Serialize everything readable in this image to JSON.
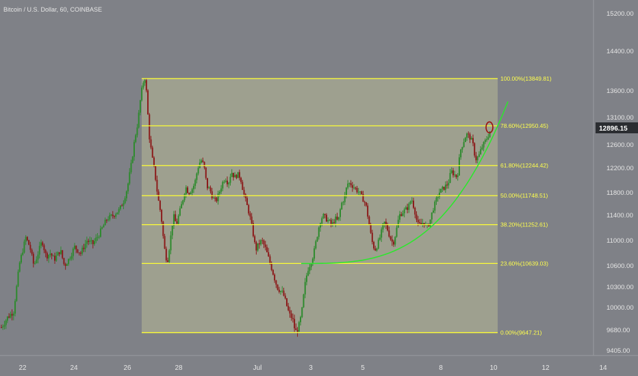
{
  "title": "Bitcoin / U.S. Dollar, 60, COINBASE",
  "colors": {
    "background": "#7f8187",
    "up": "#2d8a2d",
    "down": "#8b1a1a",
    "fib_line": "#ffff33",
    "fib_fill": "#a6a891",
    "arc": "#2ee62e",
    "marker": "#9b1010"
  },
  "chart_data": {
    "type": "candlestick",
    "title": "Bitcoin / U.S. Dollar, 60, COINBASE",
    "y_axis_ticks": [
      9405,
      9680,
      10000,
      10300,
      10600,
      11000,
      11400,
      11800,
      12200,
      12600,
      13100,
      13600,
      14400,
      15200
    ],
    "y_axis_labels": [
      "9405.00",
      "9680.00",
      "10000.00",
      "10300.00",
      "10600.00",
      "11000.00",
      "11400.00",
      "11800.00",
      "12200.00",
      "12600.00",
      "13100.00",
      "13600.00",
      "14400.00",
      "15200.00"
    ],
    "x_axis_labels": [
      "22",
      "24",
      "26",
      "28",
      "Jul",
      "3",
      "5",
      "8",
      "10",
      "12",
      "14"
    ],
    "last_price": "12896.15",
    "price_path": [
      [
        0,
        9720
      ],
      [
        6,
        9860
      ],
      [
        12,
        9950
      ],
      [
        18,
        10650
      ],
      [
        24,
        11050
      ],
      [
        28,
        10900
      ],
      [
        32,
        10600
      ],
      [
        36,
        10800
      ],
      [
        40,
        11000
      ],
      [
        44,
        10750
      ],
      [
        48,
        10800
      ],
      [
        52,
        10700
      ],
      [
        58,
        10850
      ],
      [
        62,
        10600
      ],
      [
        66,
        10700
      ],
      [
        72,
        10900
      ],
      [
        78,
        10800
      ],
      [
        84,
        11000
      ],
      [
        90,
        10950
      ],
      [
        96,
        11100
      ],
      [
        104,
        11350
      ],
      [
        110,
        11400
      ],
      [
        116,
        11500
      ],
      [
        120,
        11650
      ],
      [
        124,
        11900
      ],
      [
        128,
        12300
      ],
      [
        131,
        12700
      ],
      [
        134,
        13000
      ],
      [
        137,
        13500
      ],
      [
        139,
        13750
      ],
      [
        141,
        13850
      ],
      [
        143,
        13500
      ],
      [
        145,
        12800
      ],
      [
        148,
        12400
      ],
      [
        151,
        12100
      ],
      [
        154,
        11700
      ],
      [
        157,
        11400
      ],
      [
        160,
        10900
      ],
      [
        163,
        10650
      ],
      [
        166,
        11000
      ],
      [
        169,
        11400
      ],
      [
        172,
        11250
      ],
      [
        175,
        11450
      ],
      [
        178,
        11650
      ],
      [
        181,
        11900
      ],
      [
        184,
        11800
      ],
      [
        187,
        11850
      ],
      [
        190,
        11950
      ],
      [
        193,
        12200
      ],
      [
        196,
        12350
      ],
      [
        199,
        12250
      ],
      [
        202,
        11900
      ],
      [
        205,
        11850
      ],
      [
        208,
        11700
      ],
      [
        211,
        11650
      ],
      [
        214,
        11800
      ],
      [
        217,
        11950
      ],
      [
        220,
        12050
      ],
      [
        223,
        11950
      ],
      [
        226,
        12150
      ],
      [
        229,
        12050
      ],
      [
        232,
        12100
      ],
      [
        235,
        12050
      ],
      [
        238,
        11800
      ],
      [
        241,
        11600
      ],
      [
        244,
        11400
      ],
      [
        247,
        11150
      ],
      [
        250,
        10850
      ],
      [
        253,
        10950
      ],
      [
        256,
        11000
      ],
      [
        259,
        10900
      ],
      [
        262,
        10750
      ],
      [
        265,
        10600
      ],
      [
        268,
        10450
      ],
      [
        271,
        10300
      ],
      [
        274,
        10250
      ],
      [
        277,
        10200
      ],
      [
        280,
        10050
      ],
      [
        283,
        9900
      ],
      [
        286,
        9850
      ],
      [
        289,
        9650
      ],
      [
        292,
        9720
      ],
      [
        295,
        9900
      ],
      [
        298,
        10300
      ],
      [
        301,
        10550
      ],
      [
        304,
        10650
      ],
      [
        307,
        10800
      ],
      [
        310,
        11050
      ],
      [
        313,
        11300
      ],
      [
        316,
        11400
      ],
      [
        319,
        11350
      ],
      [
        322,
        11300
      ],
      [
        325,
        11250
      ],
      [
        328,
        11350
      ],
      [
        331,
        11300
      ],
      [
        334,
        11600
      ],
      [
        337,
        11700
      ],
      [
        340,
        11950
      ],
      [
        343,
        11950
      ],
      [
        346,
        11900
      ],
      [
        349,
        11850
      ],
      [
        352,
        11800
      ],
      [
        355,
        11700
      ],
      [
        358,
        11600
      ],
      [
        361,
        11300
      ],
      [
        364,
        11000
      ],
      [
        367,
        10850
      ],
      [
        370,
        10950
      ],
      [
        373,
        11100
      ],
      [
        376,
        11300
      ],
      [
        379,
        11200
      ],
      [
        382,
        11050
      ],
      [
        385,
        10950
      ],
      [
        388,
        11150
      ],
      [
        391,
        11400
      ],
      [
        394,
        11450
      ],
      [
        397,
        11500
      ],
      [
        400,
        11550
      ],
      [
        403,
        11700
      ],
      [
        406,
        11500
      ],
      [
        409,
        11250
      ],
      [
        412,
        11250
      ],
      [
        415,
        11300
      ],
      [
        418,
        11200
      ],
      [
        421,
        11300
      ],
      [
        424,
        11500
      ],
      [
        427,
        11650
      ],
      [
        430,
        11800
      ],
      [
        433,
        11850
      ],
      [
        436,
        11900
      ],
      [
        439,
        11950
      ],
      [
        442,
        12150
      ],
      [
        445,
        12100
      ],
      [
        448,
        12050
      ],
      [
        451,
        12500
      ],
      [
        454,
        12650
      ],
      [
        457,
        12800
      ],
      [
        460,
        12750
      ],
      [
        463,
        12650
      ],
      [
        466,
        12350
      ],
      [
        469,
        12400
      ],
      [
        472,
        12550
      ],
      [
        475,
        12650
      ],
      [
        478,
        12750
      ],
      [
        481,
        12900
      ]
    ],
    "fibonacci": {
      "levels": [
        {
          "ratio": "100.00%",
          "price": 13849.81,
          "label": "100.00%(13849.81)"
        },
        {
          "ratio": "78.60%",
          "price": 12950.45,
          "label": "78.60%(12950.45)"
        },
        {
          "ratio": "61.80%",
          "price": 12244.42,
          "label": "61.80%(12244.42)"
        },
        {
          "ratio": "50.00%",
          "price": 11748.51,
          "label": "50.00%(11748.51)"
        },
        {
          "ratio": "38.20%",
          "price": 11252.61,
          "label": "38.20%(11252.61)"
        },
        {
          "ratio": "23.60%",
          "price": 10639.03,
          "label": "23.60%(10639.03)"
        },
        {
          "ratio": "0.00%",
          "price": 9647.21,
          "label": "0.00%(9647.21)"
        }
      ]
    },
    "parabolic_curve": {
      "start_price": 10639.03,
      "end_price": 13400,
      "color": "#2ee62e"
    },
    "marker": {
      "price": 12896.15,
      "shape": "circle"
    }
  }
}
